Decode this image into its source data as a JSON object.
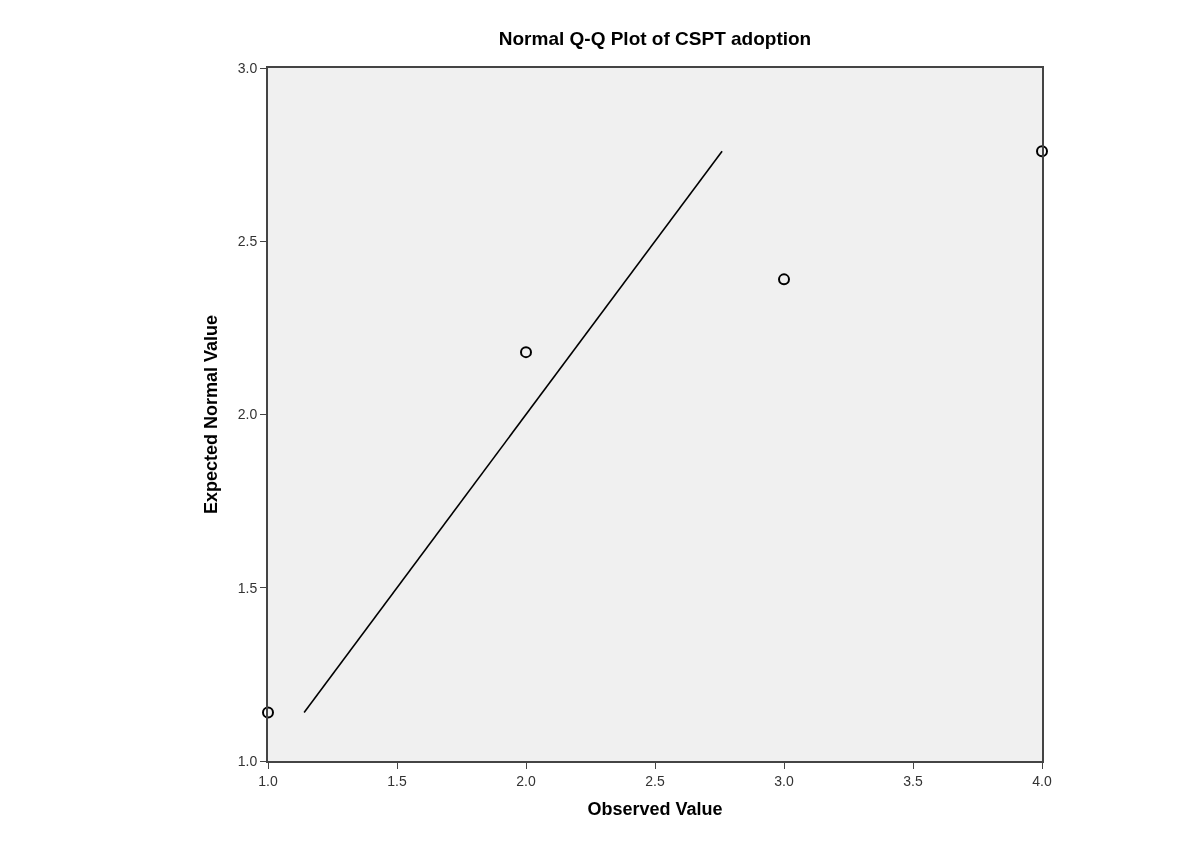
{
  "chart_data": {
    "type": "scatter",
    "title": "Normal Q-Q Plot of CSPT adoption",
    "xlabel": "Observed Value",
    "ylabel": "Expected Normal Value",
    "series": [
      {
        "color": "#000000",
        "x": [
          1,
          2,
          3,
          4
        ],
        "values": [
          1.14,
          2.18,
          2.39,
          2.76
        ],
        "marker": "circle"
      },
      {
        "type": "line",
        "color": "#000000",
        "x": [
          1.14,
          2.76
        ],
        "values": [
          1.14,
          2.76
        ],
        "line_style": "solid"
      }
    ],
    "xlim": [
      1.0,
      4.0
    ],
    "ylim": [
      1.0,
      3.0
    ],
    "xticks": [
      {
        "value": 1,
        "label": "1.0"
      },
      {
        "value": 1.5,
        "label": "1.5"
      },
      {
        "value": 2,
        "label": "2.0"
      },
      {
        "value": 2.5,
        "label": "2.5"
      },
      {
        "value": 3,
        "label": "3.0"
      },
      {
        "value": 3.5,
        "label": "3.5"
      },
      {
        "value": 4,
        "label": "4.0"
      }
    ],
    "yticks": [
      {
        "value": 1,
        "label": "1.0"
      },
      {
        "value": 1.5,
        "label": "1.5"
      },
      {
        "value": 2,
        "label": "2.0"
      },
      {
        "value": 2.5,
        "label": "2.5"
      },
      {
        "value": 3,
        "label": "3.0"
      }
    ],
    "grid": false
  }
}
